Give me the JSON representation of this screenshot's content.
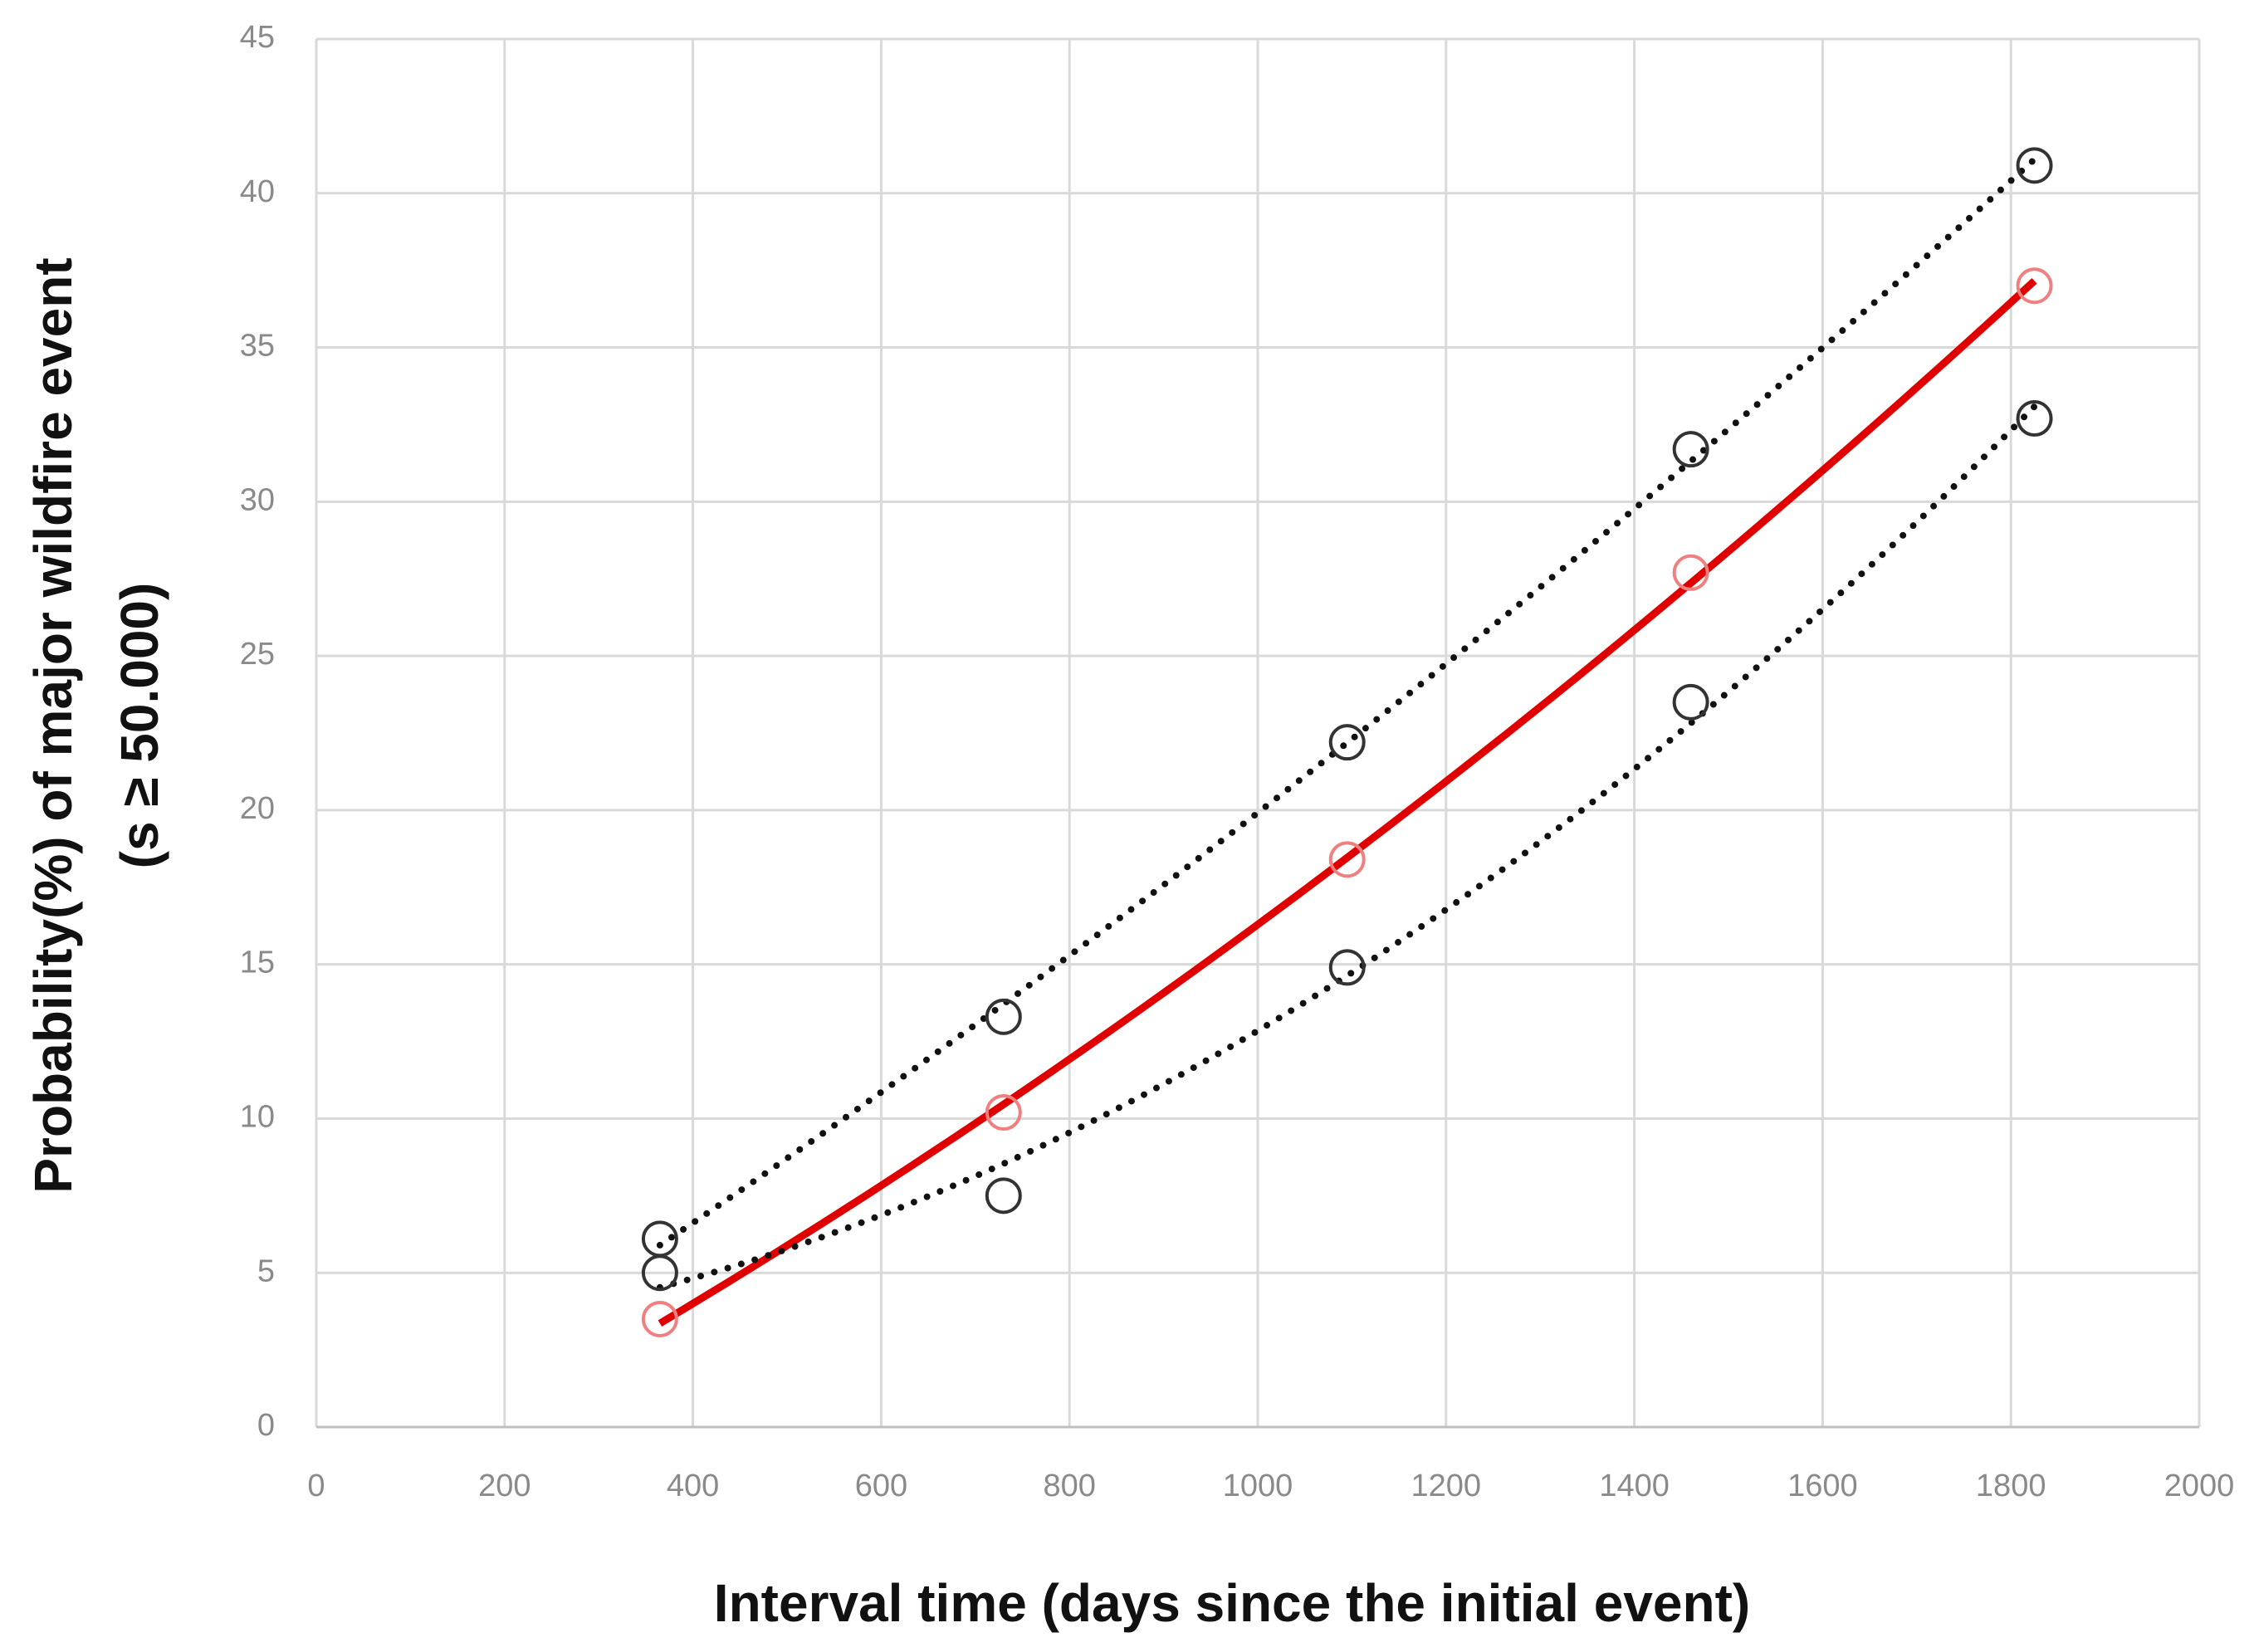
{
  "chart_data": {
    "type": "scatter",
    "xlabel": "Interval time (days since the initial event)",
    "ylabel": [
      "Probability(%) of major wildfire event",
      "(s ≥ 50.000)"
    ],
    "x": [
      365,
      730,
      1095,
      1460,
      1825
    ],
    "series": [
      {
        "color": "#e00000",
        "marker_color": "#f08080",
        "line_style": "solid",
        "values": [
          3.5,
          10.2,
          18.4,
          27.7,
          37.0
        ]
      },
      {
        "color": "#111111",
        "marker_color": "#333333",
        "line_style": "dotted",
        "values": [
          6.1,
          13.3,
          22.2,
          31.7,
          40.9
        ]
      },
      {
        "color": "#111111",
        "marker_color": "#333333",
        "line_style": "dotted",
        "values": [
          5.0,
          7.5,
          14.9,
          23.5,
          32.7
        ]
      }
    ],
    "trendline": "polynomial",
    "xlim": [
      0,
      2000
    ],
    "xticks": [
      0,
      200,
      400,
      600,
      800,
      1000,
      1200,
      1400,
      1600,
      1800,
      2000
    ],
    "ylim": [
      0,
      45
    ],
    "yticks": [
      0,
      5,
      10,
      15,
      20,
      25,
      30,
      35,
      40,
      45
    ],
    "grid": true
  }
}
